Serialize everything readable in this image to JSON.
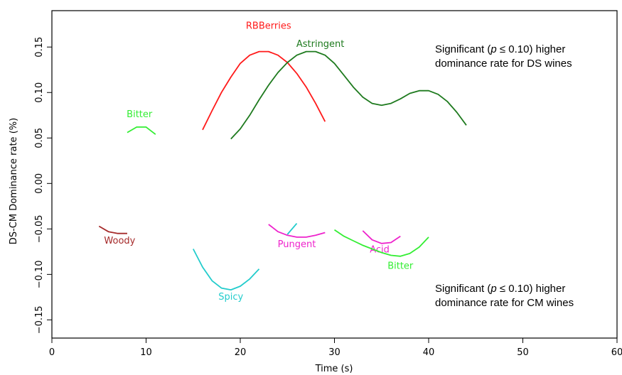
{
  "chart_data": {
    "type": "line",
    "xlabel": "Time (s)",
    "ylabel": "DS-CM Dominance rate (%)",
    "xlim": [
      0,
      60
    ],
    "ylim": [
      -0.17,
      0.19
    ],
    "xticks": [
      0,
      10,
      20,
      30,
      40,
      50,
      60
    ],
    "yticks": [
      -0.15,
      -0.1,
      -0.05,
      0.0,
      0.05,
      0.1,
      0.15
    ],
    "ytick_labels": [
      "−0.15",
      "−0.10",
      "−0.05",
      "0.00",
      "0.05",
      "0.10",
      "0.15"
    ],
    "grid": false,
    "notes": {
      "ds": {
        "prefix": "Significant (",
        "p": "p",
        "suffix": " ≤ 0.10) higher",
        "line2": "dominance rate for DS wines"
      },
      "cm": {
        "prefix": "Significant (",
        "p": "p",
        "suffix": " ≤ 0.10) higher",
        "line2": "dominance rate for CM wines"
      }
    },
    "series": [
      {
        "name": "RBBerries",
        "color": "#ff1a1a",
        "label_at": [
          23,
          0.17
        ],
        "x": [
          16,
          17,
          18,
          19,
          20,
          21,
          22,
          23,
          24,
          25,
          26,
          27,
          28,
          29
        ],
        "y": [
          0.059,
          0.08,
          0.1,
          0.117,
          0.132,
          0.141,
          0.145,
          0.145,
          0.141,
          0.133,
          0.121,
          0.106,
          0.088,
          0.068
        ]
      },
      {
        "name": "Astringent",
        "color": "#1e7a1e",
        "label_at": [
          28.5,
          0.15
        ],
        "x": [
          19,
          20,
          21,
          22,
          23,
          24,
          25,
          26,
          27,
          28,
          29,
          30,
          31,
          32,
          33,
          34,
          35,
          36,
          37,
          38,
          39,
          40,
          41,
          42,
          43,
          44
        ],
        "y": [
          0.049,
          0.06,
          0.075,
          0.092,
          0.108,
          0.122,
          0.133,
          0.141,
          0.145,
          0.145,
          0.141,
          0.132,
          0.119,
          0.106,
          0.095,
          0.088,
          0.086,
          0.088,
          0.093,
          0.099,
          0.102,
          0.102,
          0.098,
          0.09,
          0.078,
          0.064
        ]
      },
      {
        "name": "Bitter",
        "color": "#33ee33",
        "label_at": [
          9.3,
          0.073
        ],
        "x": [
          8,
          9,
          10,
          11
        ],
        "y": [
          0.056,
          0.062,
          0.062,
          0.054
        ]
      },
      {
        "name": "Woody",
        "color": "#a52a2a",
        "label_at": [
          7.2,
          -0.066
        ],
        "x": [
          5,
          6,
          7,
          8
        ],
        "y": [
          -0.047,
          -0.053,
          -0.055,
          -0.055
        ]
      },
      {
        "name": "Spicy",
        "color": "#22cccc",
        "label_at": [
          19,
          -0.128
        ],
        "x": [
          15,
          16,
          17,
          18,
          19,
          20,
          21,
          22
        ],
        "y": [
          -0.072,
          -0.092,
          -0.107,
          -0.115,
          -0.117,
          -0.113,
          -0.105,
          -0.094
        ]
      },
      {
        "name": "",
        "color": "#22cccc",
        "label_at": null,
        "x": [
          25,
          26
        ],
        "y": [
          -0.056,
          -0.044
        ]
      },
      {
        "name": "Pungent",
        "color": "#ee22cc",
        "label_at": [
          26,
          -0.07
        ],
        "x": [
          23,
          24,
          25,
          26,
          27,
          28,
          29
        ],
        "y": [
          -0.045,
          -0.053,
          -0.057,
          -0.059,
          -0.059,
          -0.057,
          -0.054
        ]
      },
      {
        "name": "Acid",
        "color": "#ee22cc",
        "label_at": [
          34.8,
          -0.076
        ],
        "x": [
          33,
          34,
          35,
          36,
          37
        ],
        "y": [
          -0.052,
          -0.062,
          -0.066,
          -0.065,
          -0.058
        ]
      },
      {
        "name": "Bitter",
        "color": "#33ee33",
        "label_at": [
          37,
          -0.094
        ],
        "x": [
          30,
          31,
          32,
          33,
          34,
          35,
          36,
          37,
          38,
          39,
          40
        ],
        "y": [
          -0.051,
          -0.058,
          -0.063,
          -0.068,
          -0.072,
          -0.076,
          -0.079,
          -0.08,
          -0.077,
          -0.07,
          -0.059
        ]
      }
    ]
  }
}
